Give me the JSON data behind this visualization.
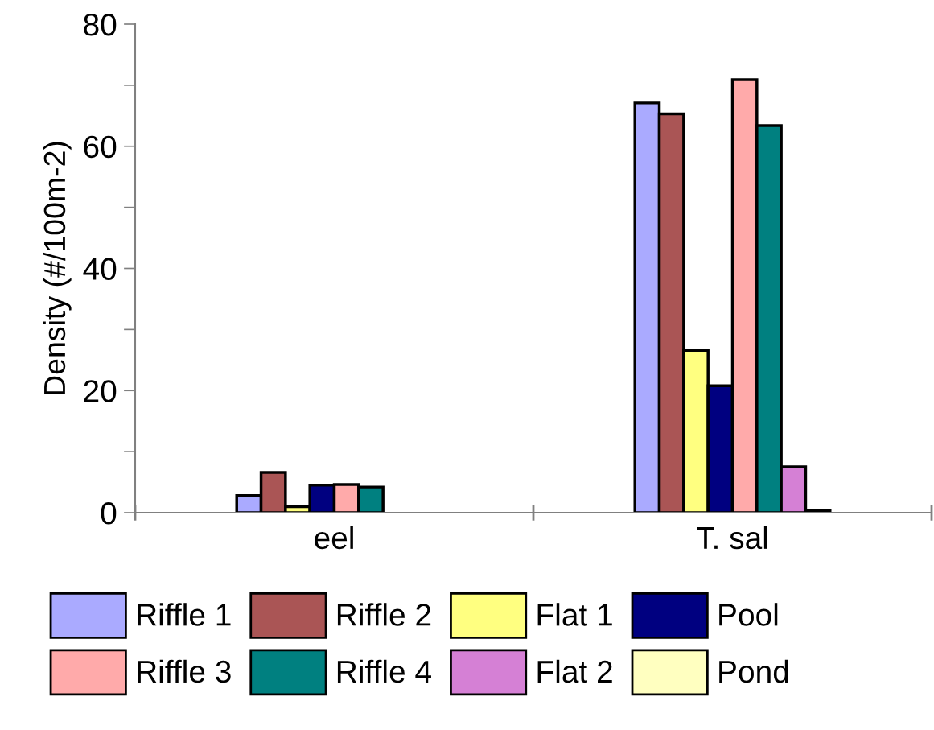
{
  "chart_data": {
    "type": "bar",
    "ylabel": "Density (#/100m-2)",
    "categories": [
      "eel",
      "T. sal"
    ],
    "series": [
      {
        "name": "Riffle 1",
        "color": "#aaaaff",
        "values": [
          2.8,
          67.1
        ]
      },
      {
        "name": "Riffle 2",
        "color": "#aa5555",
        "values": [
          6.6,
          65.3
        ]
      },
      {
        "name": "Flat 1",
        "color": "#ffff80",
        "values": [
          1.0,
          26.6
        ]
      },
      {
        "name": "Pool",
        "color": "#000080",
        "values": [
          4.5,
          20.8
        ]
      },
      {
        "name": "Riffle 3",
        "color": "#ffaaaa",
        "values": [
          4.6,
          70.9
        ]
      },
      {
        "name": "Riffle 4",
        "color": "#008080",
        "values": [
          4.2,
          63.4
        ]
      },
      {
        "name": "Flat 2",
        "color": "#d580d5",
        "values": [
          null,
          7.5
        ]
      },
      {
        "name": "Pond",
        "color": "#ffffc0",
        "values": [
          null,
          0.3
        ]
      }
    ],
    "ylim": [
      0,
      80
    ],
    "yticks": [
      0,
      {
        "value": 10,
        "label": null
      },
      20,
      {
        "value": 30,
        "label": null
      },
      40,
      {
        "value": 50,
        "label": null
      },
      60,
      {
        "value": 70,
        "label": null
      },
      80
    ],
    "grid": false,
    "legend": "bottom"
  }
}
